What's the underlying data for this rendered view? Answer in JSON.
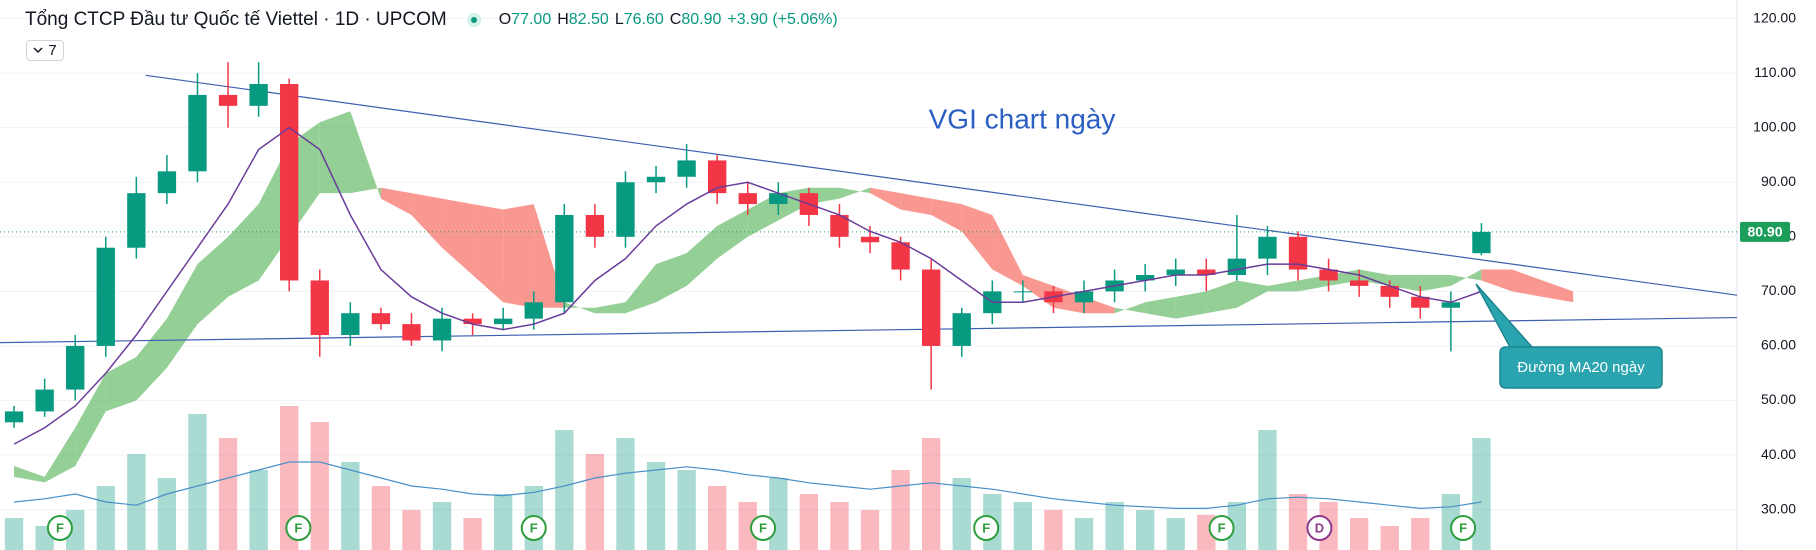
{
  "header": {
    "title": "Tổng CTCP Đầu tư Quốc tế Viettel · 1D · UPCOM",
    "open_label": "O",
    "open": "77.00",
    "high_label": "H",
    "high": "82.50",
    "low_label": "L",
    "low": "76.60",
    "close_label": "C",
    "close": "80.90",
    "change": "+3.90 (+5.06%)",
    "indicator_count": "7"
  },
  "chart_data": {
    "type": "candlestick",
    "annotation": "VGI chart ngày",
    "callout": "Đường MA20 ngày",
    "ylim": [
      22.6,
      123.4
    ],
    "xlim": [
      -0.46,
      56.36
    ],
    "yticks": [
      {
        "value": 120,
        "label": "120.00"
      },
      {
        "value": 110,
        "label": "110.00"
      },
      {
        "value": 100,
        "label": "100.00"
      },
      {
        "value": 90,
        "label": "90.00"
      },
      {
        "value": 80,
        "label": "80.00"
      },
      {
        "value": 70,
        "label": "70.00"
      },
      {
        "value": 60,
        "label": "60.00"
      },
      {
        "value": 50,
        "label": "50.00"
      },
      {
        "value": 40,
        "label": "40.00"
      },
      {
        "value": 30,
        "label": "30.00"
      }
    ],
    "grid": true,
    "up_color": "#089981",
    "down_color": "#f23645",
    "open": [
      46,
      48,
      52,
      60,
      78,
      88,
      92,
      106,
      104,
      108,
      72,
      62,
      66,
      64,
      61,
      65,
      64,
      65,
      68,
      84,
      80,
      90,
      91,
      94,
      88,
      86,
      88,
      84,
      80,
      79,
      74,
      60,
      66,
      70,
      70,
      68,
      70,
      72,
      73,
      74,
      73,
      76,
      80,
      74,
      72,
      71,
      69,
      67,
      77
    ],
    "high": [
      49,
      54,
      62,
      80,
      91,
      95,
      110,
      112,
      112,
      109,
      74,
      68,
      67,
      66,
      67,
      66,
      67,
      70,
      86,
      86,
      92,
      93,
      97,
      95,
      90,
      90,
      89,
      86,
      82,
      80,
      76,
      67,
      72,
      72,
      71,
      72,
      74,
      75,
      76,
      76,
      84,
      82,
      81,
      76,
      74,
      72,
      71,
      70,
      82.5
    ],
    "low": [
      45,
      47,
      50,
      58,
      76,
      86,
      90,
      100,
      102,
      70,
      58,
      60,
      63,
      60,
      59,
      62,
      63,
      63,
      66,
      78,
      78,
      88,
      89,
      86,
      84,
      84,
      82,
      78,
      77,
      72,
      52,
      58,
      64,
      68,
      66,
      66,
      68,
      70,
      71,
      70,
      72,
      73,
      72,
      70,
      69,
      67,
      65,
      59,
      76.6
    ],
    "close": [
      48,
      52,
      60,
      78,
      88,
      92,
      106,
      104,
      108,
      72,
      62,
      66,
      64,
      61,
      65,
      64,
      65,
      68,
      84,
      80,
      90,
      91,
      94,
      88,
      86,
      88,
      84,
      80,
      79,
      74,
      60,
      66,
      70,
      70,
      68,
      70,
      72,
      73,
      74,
      73,
      76,
      80,
      74,
      72,
      71,
      69,
      67,
      68,
      80.9
    ],
    "ma20": {
      "color": "#6a3d9a",
      "values": [
        42,
        45,
        49,
        55,
        62,
        70,
        78,
        86,
        96,
        100,
        96,
        84,
        74,
        69,
        66,
        64,
        63,
        64,
        66,
        72,
        76,
        82,
        86,
        89,
        90,
        88,
        86,
        84,
        81,
        79,
        76,
        72,
        68,
        68,
        69,
        70,
        71,
        72,
        73,
        73,
        74,
        75,
        75,
        74,
        73,
        71,
        69,
        68,
        70
      ]
    },
    "volume": {
      "vlim": [
        0,
        100
      ],
      "values": [
        20,
        15,
        25,
        40,
        60,
        45,
        85,
        70,
        50,
        90,
        80,
        55,
        40,
        25,
        30,
        20,
        35,
        40,
        75,
        60,
        70,
        55,
        50,
        40,
        30,
        45,
        35,
        30,
        25,
        50,
        70,
        45,
        35,
        30,
        25,
        20,
        30,
        25,
        20,
        22,
        30,
        75,
        35,
        30,
        20,
        15,
        20,
        35,
        70
      ]
    },
    "volume_ma": {
      "color": "#4a90c8",
      "values": [
        30,
        32,
        35,
        30,
        28,
        35,
        40,
        45,
        50,
        55,
        55,
        50,
        45,
        40,
        38,
        35,
        34,
        36,
        40,
        45,
        48,
        50,
        52,
        50,
        47,
        45,
        42,
        40,
        38,
        40,
        42,
        40,
        38,
        35,
        32,
        30,
        28,
        27,
        26,
        26,
        28,
        32,
        33,
        32,
        30,
        28,
        26,
        27,
        30
      ]
    },
    "cloud": {
      "up_color": "rgba(76,175,80,0.6)",
      "down_color": "rgba(244,67,54,0.55)",
      "span_a": [
        38,
        36,
        45,
        55,
        58,
        65,
        75,
        80,
        86,
        97,
        101,
        103,
        87,
        84,
        78,
        73,
        68,
        67,
        67,
        67,
        68,
        75,
        77,
        82,
        85,
        88,
        89,
        89,
        88,
        85,
        84,
        81,
        74,
        71,
        67,
        66,
        66,
        68,
        69,
        70,
        72,
        71,
        72,
        73,
        74,
        73,
        73,
        73,
        72,
        70,
        69,
        68
      ],
      "span_b": [
        36,
        35,
        38,
        48,
        50,
        56,
        64,
        69,
        72,
        80,
        88,
        88,
        89,
        88,
        87,
        86,
        85,
        86,
        68,
        66,
        66,
        68,
        71,
        76,
        80,
        83,
        86,
        87,
        89,
        88,
        87,
        86,
        84,
        73,
        71,
        69,
        67,
        66,
        65,
        66,
        67,
        70,
        70,
        71,
        72,
        71,
        70,
        71,
        74,
        74,
        72,
        70
      ]
    },
    "trendlines": [
      {
        "color": "#3d5fb0",
        "x": [
          4.3,
          56.36
        ],
        "y": [
          109.6,
          69.3
        ]
      },
      {
        "color": "#3d5fb0",
        "x": [
          -0.46,
          56.36
        ],
        "y": [
          60.6,
          65.2
        ]
      }
    ],
    "last_price": {
      "value": 80.9,
      "label": "80.90",
      "color": "#1b9e5a"
    },
    "events": [
      {
        "x": 1.5,
        "label": "F"
      },
      {
        "x": 9.3,
        "label": "F"
      },
      {
        "x": 17.0,
        "label": "F"
      },
      {
        "x": 24.5,
        "label": "F"
      },
      {
        "x": 31.8,
        "label": "F"
      },
      {
        "x": 39.5,
        "label": "F"
      },
      {
        "x": 42.7,
        "label": "D"
      },
      {
        "x": 47.4,
        "label": "F"
      }
    ]
  }
}
